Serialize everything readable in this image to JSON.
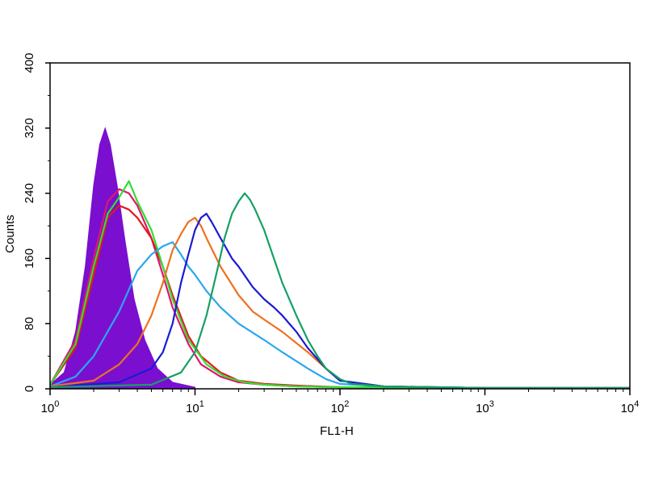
{
  "chart_data": {
    "type": "line",
    "xlabel": "FL1-H",
    "ylabel": "Counts",
    "xscale": "log",
    "xlim": [
      1,
      10000
    ],
    "ylim": [
      0,
      400
    ],
    "x_ticks": [
      {
        "value": 1,
        "base": "10",
        "exp": "0"
      },
      {
        "value": 10,
        "base": "10",
        "exp": "1"
      },
      {
        "value": 100,
        "base": "10",
        "exp": "2"
      },
      {
        "value": 1000,
        "base": "10",
        "exp": "3"
      },
      {
        "value": 10000,
        "base": "10",
        "exp": "4"
      }
    ],
    "y_ticks": [
      {
        "value": 0,
        "label": "0"
      },
      {
        "value": 80,
        "label": "80"
      },
      {
        "value": 160,
        "label": "160"
      },
      {
        "value": 240,
        "label": "240"
      },
      {
        "value": 320,
        "label": "320"
      },
      {
        "value": 400,
        "label": "400"
      }
    ],
    "grid": false,
    "series": [
      {
        "color": "#7a0fd0",
        "filled": true,
        "x": [
          1.0,
          1.25,
          1.5,
          1.75,
          2.0,
          2.2,
          2.4,
          2.6,
          2.9,
          3.3,
          3.8,
          4.5,
          5.5,
          7.0,
          10.0
        ],
        "y": [
          5,
          20,
          70,
          150,
          250,
          300,
          320,
          300,
          250,
          180,
          110,
          60,
          25,
          8,
          2
        ]
      },
      {
        "color": "#e0156e",
        "filled": false,
        "x": [
          1.0,
          1.5,
          2.0,
          2.5,
          3.0,
          3.5,
          4.0,
          5.0,
          6.0,
          7.0,
          9.0,
          11.0,
          15.0,
          20.0,
          30.0,
          50.0,
          100.0,
          1000.0,
          10000.0
        ],
        "y": [
          5,
          60,
          160,
          230,
          245,
          240,
          225,
          185,
          140,
          100,
          55,
          30,
          15,
          8,
          5,
          3,
          2,
          1,
          1
        ]
      },
      {
        "color": "#e01a1a",
        "filled": false,
        "x": [
          1.0,
          1.5,
          2.0,
          2.5,
          3.0,
          3.5,
          4.0,
          5.0,
          6.0,
          7.0,
          9.0,
          11.0,
          15.0,
          20.0,
          30.0,
          50.0,
          100.0,
          1000.0,
          10000.0
        ],
        "y": [
          5,
          50,
          140,
          210,
          225,
          220,
          210,
          185,
          150,
          115,
          65,
          40,
          20,
          10,
          6,
          4,
          2,
          1,
          1
        ]
      },
      {
        "color": "#33dd33",
        "filled": false,
        "x": [
          1.0,
          1.5,
          2.0,
          2.5,
          3.0,
          3.5,
          4.0,
          5.0,
          6.0,
          7.0,
          9.0,
          12.0,
          16.0,
          22.0,
          30.0,
          50.0,
          100.0,
          1000.0,
          10000.0
        ],
        "y": [
          5,
          55,
          150,
          215,
          235,
          255,
          230,
          195,
          150,
          110,
          60,
          30,
          15,
          8,
          5,
          3,
          2,
          1,
          1
        ]
      },
      {
        "color": "#2aa7f0",
        "filled": false,
        "x": [
          1.0,
          1.5,
          2.0,
          3.0,
          4.0,
          5.0,
          6.0,
          7.0,
          8.0,
          9.0,
          10.0,
          12.0,
          15.0,
          20.0,
          30.0,
          40.0,
          60.0,
          80.0,
          100.0,
          200.0,
          1000.0,
          10000.0
        ],
        "y": [
          3,
          15,
          40,
          95,
          145,
          165,
          175,
          180,
          165,
          150,
          140,
          120,
          100,
          80,
          60,
          45,
          25,
          12,
          6,
          3,
          1,
          1
        ]
      },
      {
        "color": "#f07020",
        "filled": false,
        "x": [
          1.0,
          2.0,
          3.0,
          4.0,
          5.0,
          6.0,
          7.0,
          8.0,
          9.0,
          10.0,
          11.0,
          12.0,
          15.0,
          20.0,
          25.0,
          30.0,
          40.0,
          60.0,
          80.0,
          100.0,
          200.0,
          1000.0,
          10000.0
        ],
        "y": [
          3,
          10,
          30,
          55,
          90,
          130,
          170,
          190,
          205,
          210,
          200,
          185,
          150,
          115,
          95,
          85,
          70,
          45,
          25,
          10,
          3,
          1,
          1
        ]
      },
      {
        "color": "#1a1ad6",
        "filled": false,
        "x": [
          1.0,
          3.0,
          5.0,
          6.0,
          7.0,
          8.0,
          9.0,
          10.0,
          11.0,
          12.0,
          13.0,
          15.0,
          18.0,
          20.0,
          25.0,
          30.0,
          35.0,
          40.0,
          50.0,
          60.0,
          80.0,
          100.0,
          200.0,
          1000.0,
          10000.0
        ],
        "y": [
          2,
          8,
          25,
          45,
          80,
          130,
          165,
          195,
          210,
          215,
          205,
          185,
          160,
          150,
          125,
          110,
          100,
          90,
          70,
          50,
          25,
          10,
          3,
          1,
          1
        ]
      },
      {
        "color": "#15a065",
        "filled": false,
        "x": [
          1.0,
          5.0,
          8.0,
          10.0,
          12.0,
          14.0,
          16.0,
          18.0,
          20.0,
          22.0,
          24.0,
          26.0,
          30.0,
          35.0,
          40.0,
          50.0,
          60.0,
          70.0,
          80.0,
          100.0,
          120.0,
          200.0,
          1000.0,
          10000.0
        ],
        "y": [
          2,
          5,
          20,
          45,
          90,
          140,
          185,
          215,
          230,
          240,
          232,
          220,
          195,
          160,
          130,
          90,
          60,
          40,
          25,
          12,
          6,
          3,
          1,
          1
        ]
      }
    ]
  }
}
